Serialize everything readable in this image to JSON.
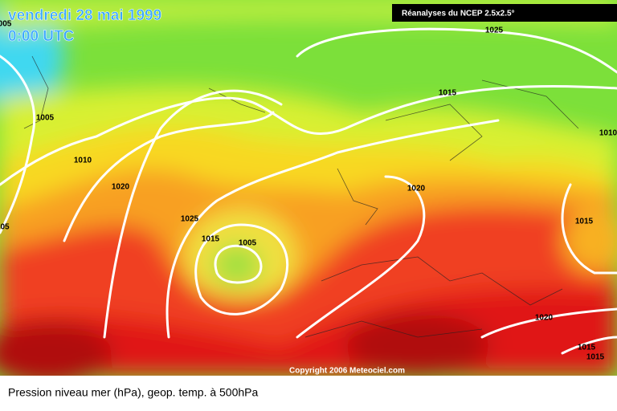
{
  "header": {
    "date": "vendredi 28 mai 1999",
    "time": "0:00 UTC",
    "source": "Réanalyses du NCEP 2.5x2.5°"
  },
  "isobar_labels": [
    "005",
    "1005",
    "1010",
    "1020",
    "1025",
    "1015",
    "1005",
    "1020",
    "1015",
    "1025",
    "1015",
    "1020",
    "1015",
    "1015",
    "1010",
    "05"
  ],
  "copyright": "Copyright 2006 Meteociel.com",
  "caption": "Pression niveau mer (hPa), geop. temp. à 500hPa"
}
